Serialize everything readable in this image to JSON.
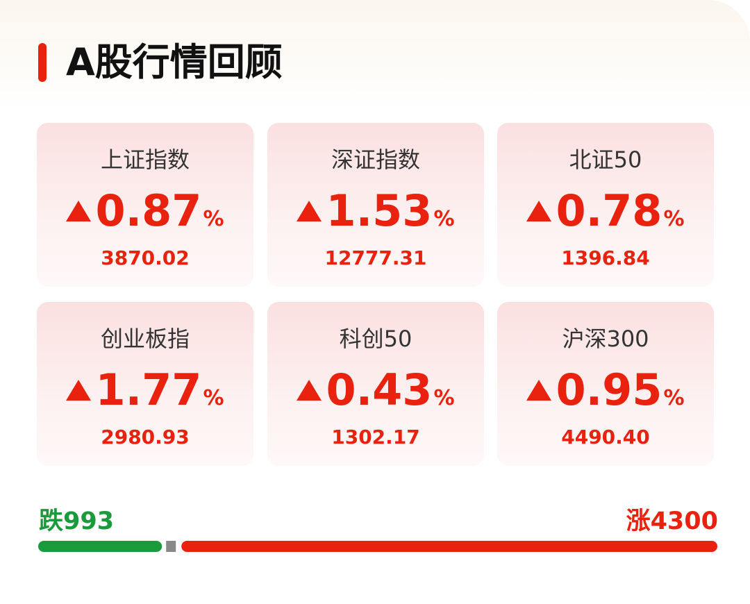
{
  "header": {
    "title": "A股行情回顾"
  },
  "cards": [
    {
      "name": "上证指数",
      "change": "0.87",
      "unit": "%",
      "value": "3870.02"
    },
    {
      "name": "深证指数",
      "change": "1.53",
      "unit": "%",
      "value": "12777.31"
    },
    {
      "name": "北证50",
      "change": "0.78",
      "unit": "%",
      "value": "1396.84"
    },
    {
      "name": "创业板指",
      "change": "1.77",
      "unit": "%",
      "value": "2980.93"
    },
    {
      "name": "科创50",
      "change": "0.43",
      "unit": "%",
      "value": "1302.17"
    },
    {
      "name": "沪深300",
      "change": "0.95",
      "unit": "%",
      "value": "4490.40"
    }
  ],
  "breadth": {
    "fall": {
      "label": "跌",
      "count": 993
    },
    "rise": {
      "label": "涨",
      "count": 4300
    }
  }
}
